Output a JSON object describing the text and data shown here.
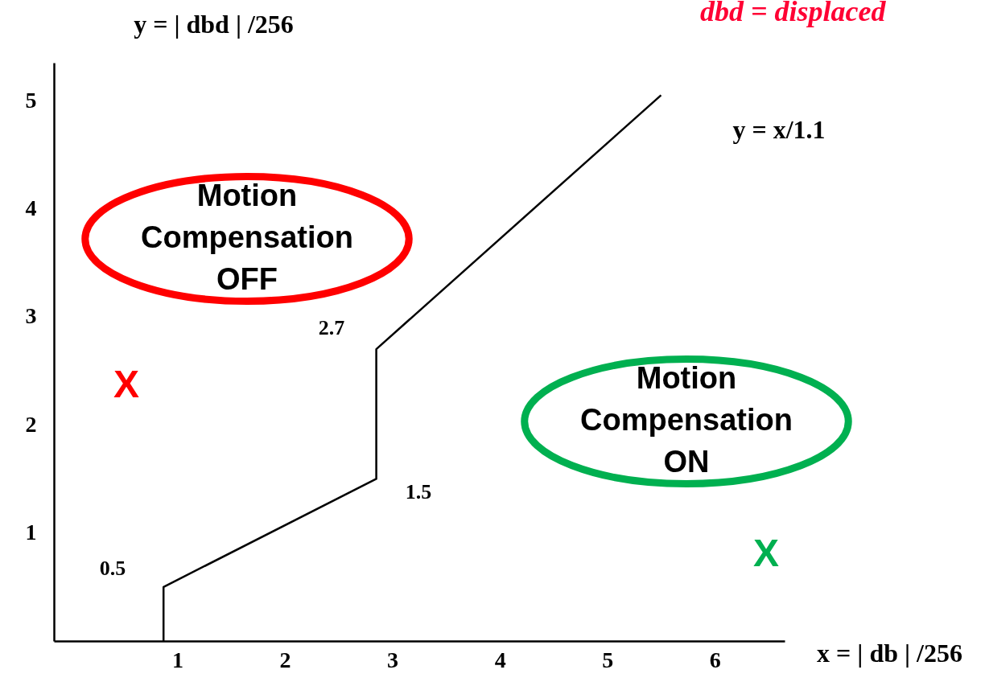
{
  "chart_data": {
    "type": "line",
    "xlabel": "x = | db | /256",
    "ylabel": "y = | dbd | /256",
    "x": [
      0.87,
      0.87,
      2.85,
      2.85,
      5.5
    ],
    "series": [
      {
        "color": "#000000",
        "values": [
          0,
          0.5,
          1.5,
          2.7,
          5.05
        ]
      }
    ],
    "xlim": [
      -0.15,
      6.65
    ],
    "xticks": [
      1,
      2,
      3,
      4,
      5,
      6
    ],
    "ylim": [
      0,
      5.35
    ],
    "yticks": [
      1,
      2,
      3,
      4,
      5
    ],
    "grid": false,
    "marker": "none",
    "line_style": "solid",
    "annotations": [
      "y = x/1.1",
      "0.5",
      "1.5",
      "2.7",
      "Motion Compensation OFF",
      "Motion Compensation ON",
      "X",
      "X",
      "dbd = displaced"
    ]
  }
}
